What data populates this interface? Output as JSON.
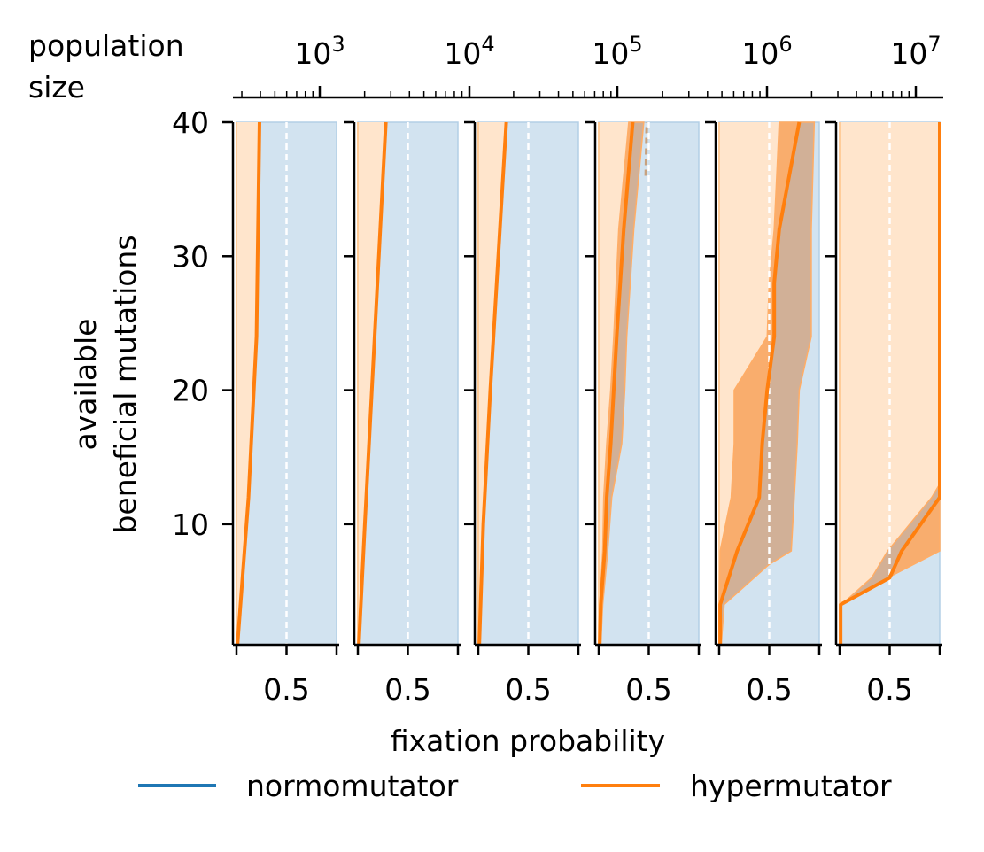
{
  "top_axis_label_line1": "population",
  "top_axis_label_line2": "size",
  "top_axis_ticks": [
    {
      "base": "10",
      "exp": "3"
    },
    {
      "base": "10",
      "exp": "4"
    },
    {
      "base": "10",
      "exp": "5"
    },
    {
      "base": "10",
      "exp": "6"
    },
    {
      "base": "10",
      "exp": "7"
    }
  ],
  "colors": {
    "normomutator": "#1f77b4",
    "hypermutator": "#ff7f0e",
    "normo_fill": "#d2e3f0",
    "hyper_fill_light": "#ffe5cc",
    "hyper_fill_mid": "#ffad66",
    "overlap_fill": "#d1ad91"
  },
  "chart_data": {
    "type": "area",
    "xlabel": "fixation probability",
    "ylabel_line1": "available",
    "ylabel_line2": "beneficial mutations",
    "ylim": [
      1,
      40
    ],
    "xlim": [
      0,
      1
    ],
    "yticks": [
      10,
      20,
      30,
      40
    ],
    "xtick_value": 0.5,
    "xtick_label": "0.5",
    "reference_line_x": 0.5,
    "legend": [
      {
        "name": "normomutator",
        "color": "#1f77b4"
      },
      {
        "name": "hypermutator",
        "color": "#ff7f0e"
      }
    ],
    "legend_placement": "bottom-center",
    "panels": [
      {
        "population_size": 1000,
        "hyper_median": [
          [
            0.01,
            1
          ],
          [
            0.12,
            12
          ],
          [
            0.2,
            24
          ],
          [
            0.23,
            40
          ]
        ],
        "hyper_band_low": null,
        "hyper_band_high": null
      },
      {
        "population_size": 5000,
        "hyper_median": [
          [
            0.01,
            1
          ],
          [
            0.07,
            10
          ],
          [
            0.14,
            20
          ],
          [
            0.28,
            40
          ]
        ],
        "hyper_band_low": null,
        "hyper_band_high": null
      },
      {
        "population_size": 20000,
        "hyper_median": [
          [
            0.01,
            1
          ],
          [
            0.05,
            10
          ],
          [
            0.12,
            20
          ],
          [
            0.28,
            40
          ]
        ],
        "hyper_band_low": null,
        "hyper_band_high": null
      },
      {
        "population_size": 100000,
        "hyper_median": [
          [
            0.01,
            1
          ],
          [
            0.02,
            4
          ],
          [
            0.06,
            8
          ],
          [
            0.08,
            12
          ],
          [
            0.12,
            16
          ],
          [
            0.15,
            20
          ],
          [
            0.18,
            24
          ],
          [
            0.25,
            32
          ],
          [
            0.34,
            40
          ]
        ],
        "hyper_band_low": [
          [
            0.0,
            1
          ],
          [
            0.01,
            4
          ],
          [
            0.04,
            8
          ],
          [
            0.05,
            12
          ],
          [
            0.08,
            16
          ],
          [
            0.12,
            20
          ],
          [
            0.15,
            24
          ],
          [
            0.2,
            32
          ],
          [
            0.3,
            40
          ]
        ],
        "hyper_band_high": [
          [
            0.02,
            1
          ],
          [
            0.04,
            4
          ],
          [
            0.09,
            8
          ],
          [
            0.13,
            12
          ],
          [
            0.23,
            16
          ],
          [
            0.26,
            20
          ],
          [
            0.28,
            24
          ],
          [
            0.35,
            32
          ],
          [
            0.45,
            40
          ]
        ],
        "normo_upper_dashed": [
          [
            0.47,
            36
          ],
          [
            0.48,
            40
          ]
        ]
      },
      {
        "population_size": 1000000,
        "hyper_median": [
          [
            0.01,
            1
          ],
          [
            0.01,
            4
          ],
          [
            0.18,
            8
          ],
          [
            0.4,
            12
          ],
          [
            0.43,
            16
          ],
          [
            0.48,
            20
          ],
          [
            0.55,
            24
          ],
          [
            0.55,
            28
          ],
          [
            0.6,
            32
          ],
          [
            0.7,
            36
          ],
          [
            0.8,
            40
          ]
        ],
        "hyper_band_low": [
          [
            0.0,
            1
          ],
          [
            0.0,
            4
          ],
          [
            0.01,
            8
          ],
          [
            0.12,
            12
          ],
          [
            0.15,
            16
          ],
          [
            0.15,
            20
          ],
          [
            0.48,
            24
          ],
          [
            0.5,
            28
          ],
          [
            0.55,
            32
          ],
          [
            0.6,
            40
          ]
        ],
        "hyper_band_high": [
          [
            0.02,
            1
          ],
          [
            0.05,
            4
          ],
          [
            0.5,
            7
          ],
          [
            0.72,
            8
          ],
          [
            0.75,
            12
          ],
          [
            0.78,
            16
          ],
          [
            0.8,
            20
          ],
          [
            0.92,
            24
          ],
          [
            0.92,
            32
          ],
          [
            0.95,
            40
          ]
        ]
      },
      {
        "population_size": 10000000,
        "hyper_median": [
          [
            0.01,
            1
          ],
          [
            0.01,
            4
          ],
          [
            0.5,
            6
          ],
          [
            0.62,
            8
          ],
          [
            1.0,
            12
          ],
          [
            1.0,
            40
          ]
        ],
        "hyper_band_low": [
          [
            0.0,
            1
          ],
          [
            0.0,
            4
          ],
          [
            0.48,
            6
          ],
          [
            1.0,
            8
          ]
        ],
        "hyper_band_high": [
          [
            0.02,
            1
          ],
          [
            0.02,
            4
          ],
          [
            0.32,
            6
          ],
          [
            0.48,
            8
          ],
          [
            0.92,
            12
          ],
          [
            1.0,
            13
          ]
        ]
      }
    ]
  }
}
